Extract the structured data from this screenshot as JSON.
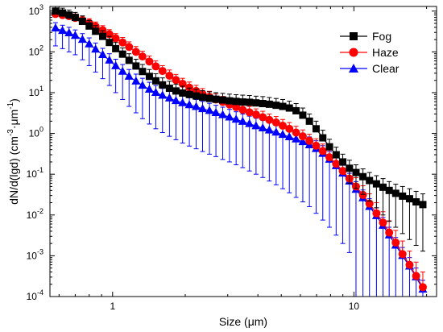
{
  "chart_data": {
    "type": "scatter",
    "xscale": "log",
    "yscale": "log",
    "xlim": [
      0.55,
      22
    ],
    "ylim": [
      0.0001,
      1300
    ],
    "xticks": [
      {
        "value": 1,
        "label": "1"
      },
      {
        "value": 10,
        "label": "10"
      }
    ],
    "yticks": [
      {
        "value": 0.0001,
        "base": "10",
        "exp": "-4"
      },
      {
        "value": 0.001,
        "base": "10",
        "exp": "-3"
      },
      {
        "value": 0.01,
        "base": "10",
        "exp": "-2"
      },
      {
        "value": 0.1,
        "base": "10",
        "exp": "-1"
      },
      {
        "value": 1,
        "base": "10",
        "exp": "0"
      },
      {
        "value": 10,
        "base": "10",
        "exp": "1"
      },
      {
        "value": 100,
        "base": "10",
        "exp": "2"
      },
      {
        "value": 1000,
        "base": "10",
        "exp": "3"
      }
    ],
    "xlabel": {
      "text": "Size (μm)"
    },
    "ylabel": {
      "part1": "dN/d(lgd) (cm",
      "exp1": "-3",
      "part2": "·μm",
      "exp2": "-1",
      "part3": ")"
    },
    "grid": false,
    "legend_position": "top-right",
    "x": [
      0.58,
      0.62,
      0.66,
      0.7,
      0.75,
      0.8,
      0.85,
      0.91,
      0.97,
      1.03,
      1.1,
      1.17,
      1.25,
      1.33,
      1.42,
      1.51,
      1.61,
      1.72,
      1.83,
      1.95,
      2.08,
      2.22,
      2.36,
      2.52,
      2.68,
      2.86,
      3.05,
      3.25,
      3.46,
      3.69,
      3.93,
      4.19,
      4.46,
      4.76,
      5.07,
      5.4,
      5.76,
      6.14,
      6.54,
      6.97,
      7.43,
      7.92,
      8.44,
      8.99,
      9.58,
      10.2,
      10.9,
      11.6,
      12.4,
      13.2,
      14.0,
      14.9,
      15.9,
      17.0,
      18.1,
      19.3
    ],
    "series": [
      {
        "name": "Fog",
        "color": "#000000",
        "marker": "square",
        "y": [
          1000,
          900,
          800,
          700,
          560,
          430,
          320,
          240,
          170,
          120,
          88,
          62,
          45,
          33,
          25,
          19.5,
          15.5,
          12.8,
          11,
          9.8,
          9,
          8.3,
          7.7,
          7.2,
          6.9,
          6.6,
          6.3,
          6.1,
          5.9,
          5.8,
          5.6,
          5.4,
          5.2,
          4.9,
          4.6,
          4.2,
          3.6,
          2.8,
          2.0,
          1.3,
          0.78,
          0.47,
          0.3,
          0.2,
          0.14,
          0.11,
          0.087,
          0.07,
          0.058,
          0.048,
          0.04,
          0.034,
          0.029,
          0.025,
          0.021,
          0.018
        ],
        "err": [
          1300,
          1180,
          1060,
          930,
          760,
          590,
          440,
          330,
          240,
          170,
          125,
          90,
          66,
          49,
          37,
          29,
          23,
          19,
          16.2,
          14.4,
          13,
          12,
          11.2,
          10.5,
          10,
          9.6,
          9.2,
          8.9,
          8.7,
          8.5,
          8.2,
          8,
          7.6,
          7.2,
          6.8,
          6.2,
          5.4,
          4.2,
          3.0,
          2.0,
          1.2,
          0.72,
          0.46,
          0.31,
          0.22,
          0.17,
          0.135,
          0.11,
          0.092,
          0.078,
          0.066,
          0.057,
          0.05,
          0.044,
          0.038,
          0.033
        ],
        "low": [
          null,
          null,
          null,
          null,
          null,
          null,
          null,
          null,
          null,
          null,
          null,
          null,
          null,
          null,
          null,
          null,
          null,
          null,
          null,
          null,
          null,
          null,
          null,
          null,
          null,
          null,
          null,
          null,
          null,
          null,
          null,
          null,
          null,
          null,
          null,
          null,
          null,
          null,
          null,
          null,
          null,
          null,
          null,
          null,
          0.06,
          0.045,
          0.032,
          0.022,
          0.015,
          0.01,
          0.007,
          0.005,
          0.0035,
          0.0025,
          0.0018,
          0.0013
        ]
      },
      {
        "name": "Haze",
        "color": "#ff0000",
        "marker": "circle",
        "y": [
          850,
          800,
          750,
          680,
          600,
          510,
          420,
          340,
          270,
          215,
          170,
          132,
          100,
          77,
          58,
          44,
          34,
          26,
          20.5,
          16.5,
          13.3,
          11,
          9.2,
          7.9,
          6.8,
          5.9,
          5.1,
          4.4,
          3.8,
          3.3,
          2.9,
          2.5,
          2.15,
          1.85,
          1.55,
          1.3,
          1.05,
          0.85,
          0.66,
          0.5,
          0.37,
          0.26,
          0.18,
          0.12,
          0.078,
          0.05,
          0.031,
          0.019,
          0.011,
          0.0065,
          0.0037,
          0.0021,
          0.0011,
          0.0006,
          0.00032,
          0.00017
        ],
        "err": [
          1050,
          990,
          930,
          850,
          760,
          650,
          540,
          440,
          350,
          280,
          225,
          176,
          135,
          104,
          79,
          60,
          46,
          36,
          28,
          22.5,
          18.2,
          15.1,
          12.6,
          10.8,
          9.3,
          8.1,
          7,
          6.1,
          5.3,
          4.6,
          4,
          3.5,
          3,
          2.6,
          2.2,
          1.85,
          1.5,
          1.22,
          0.96,
          0.74,
          0.55,
          0.39,
          0.28,
          0.19,
          0.125,
          0.082,
          0.052,
          0.033,
          0.02,
          0.012,
          0.0072,
          0.0042,
          0.0023,
          0.0013,
          0.0007,
          0.0004
        ]
      },
      {
        "name": "Clear",
        "color": "#0000ff",
        "marker": "triangle",
        "y": [
          380,
          330,
          290,
          250,
          200,
          155,
          115,
          85,
          62,
          45,
          33,
          25,
          19,
          15,
          12,
          10,
          8.5,
          7.3,
          6.3,
          5.6,
          5,
          4.5,
          4,
          3.6,
          3.2,
          2.85,
          2.5,
          2.2,
          1.95,
          1.72,
          1.52,
          1.35,
          1.2,
          1.06,
          0.93,
          0.82,
          0.72,
          0.62,
          0.52,
          0.42,
          0.32,
          0.23,
          0.16,
          0.105,
          0.067,
          0.042,
          0.026,
          0.016,
          0.0095,
          0.0055,
          0.0032,
          0.0018,
          0.001,
          0.00055,
          0.0003,
          0.00015
        ],
        "err": [
          520,
          450,
          400,
          345,
          280,
          220,
          165,
          122,
          90,
          66,
          49,
          37,
          28.5,
          22.5,
          18,
          15,
          12.7,
          11,
          9.5,
          8.4,
          7.5,
          6.8,
          6.1,
          5.5,
          4.9,
          4.4,
          3.9,
          3.4,
          3,
          2.65,
          2.35,
          2.1,
          1.87,
          1.65,
          1.45,
          1.28,
          1.12,
          0.97,
          0.82,
          0.66,
          0.5,
          0.36,
          0.25,
          0.165,
          0.105,
          0.066,
          0.041,
          0.025,
          0.015,
          0.0087,
          0.005,
          0.0028,
          0.0016,
          0.0009,
          0.0005,
          0.00025
        ],
        "low": [
          140,
          120,
          100,
          85,
          64,
          46,
          32,
          22,
          15,
          10,
          6.8,
          4.6,
          3.2,
          2.3,
          1.7,
          1.3,
          1.05,
          0.85,
          0.7,
          0.58,
          0.49,
          0.42,
          0.36,
          0.31,
          0.27,
          0.23,
          0.2,
          0.17,
          0.145,
          0.12,
          0.1,
          0.083,
          0.068,
          0.055,
          0.044,
          0.035,
          0.027,
          0.021,
          0.016,
          0.011,
          0.0075,
          0.005,
          0.0032,
          0.002,
          0.0012,
          0.0001,
          0.0001,
          0.0001,
          0.0001,
          0.0001,
          0.0001,
          0.0001,
          0.0001,
          0.0001,
          0.0001,
          0.0001
        ]
      }
    ]
  }
}
